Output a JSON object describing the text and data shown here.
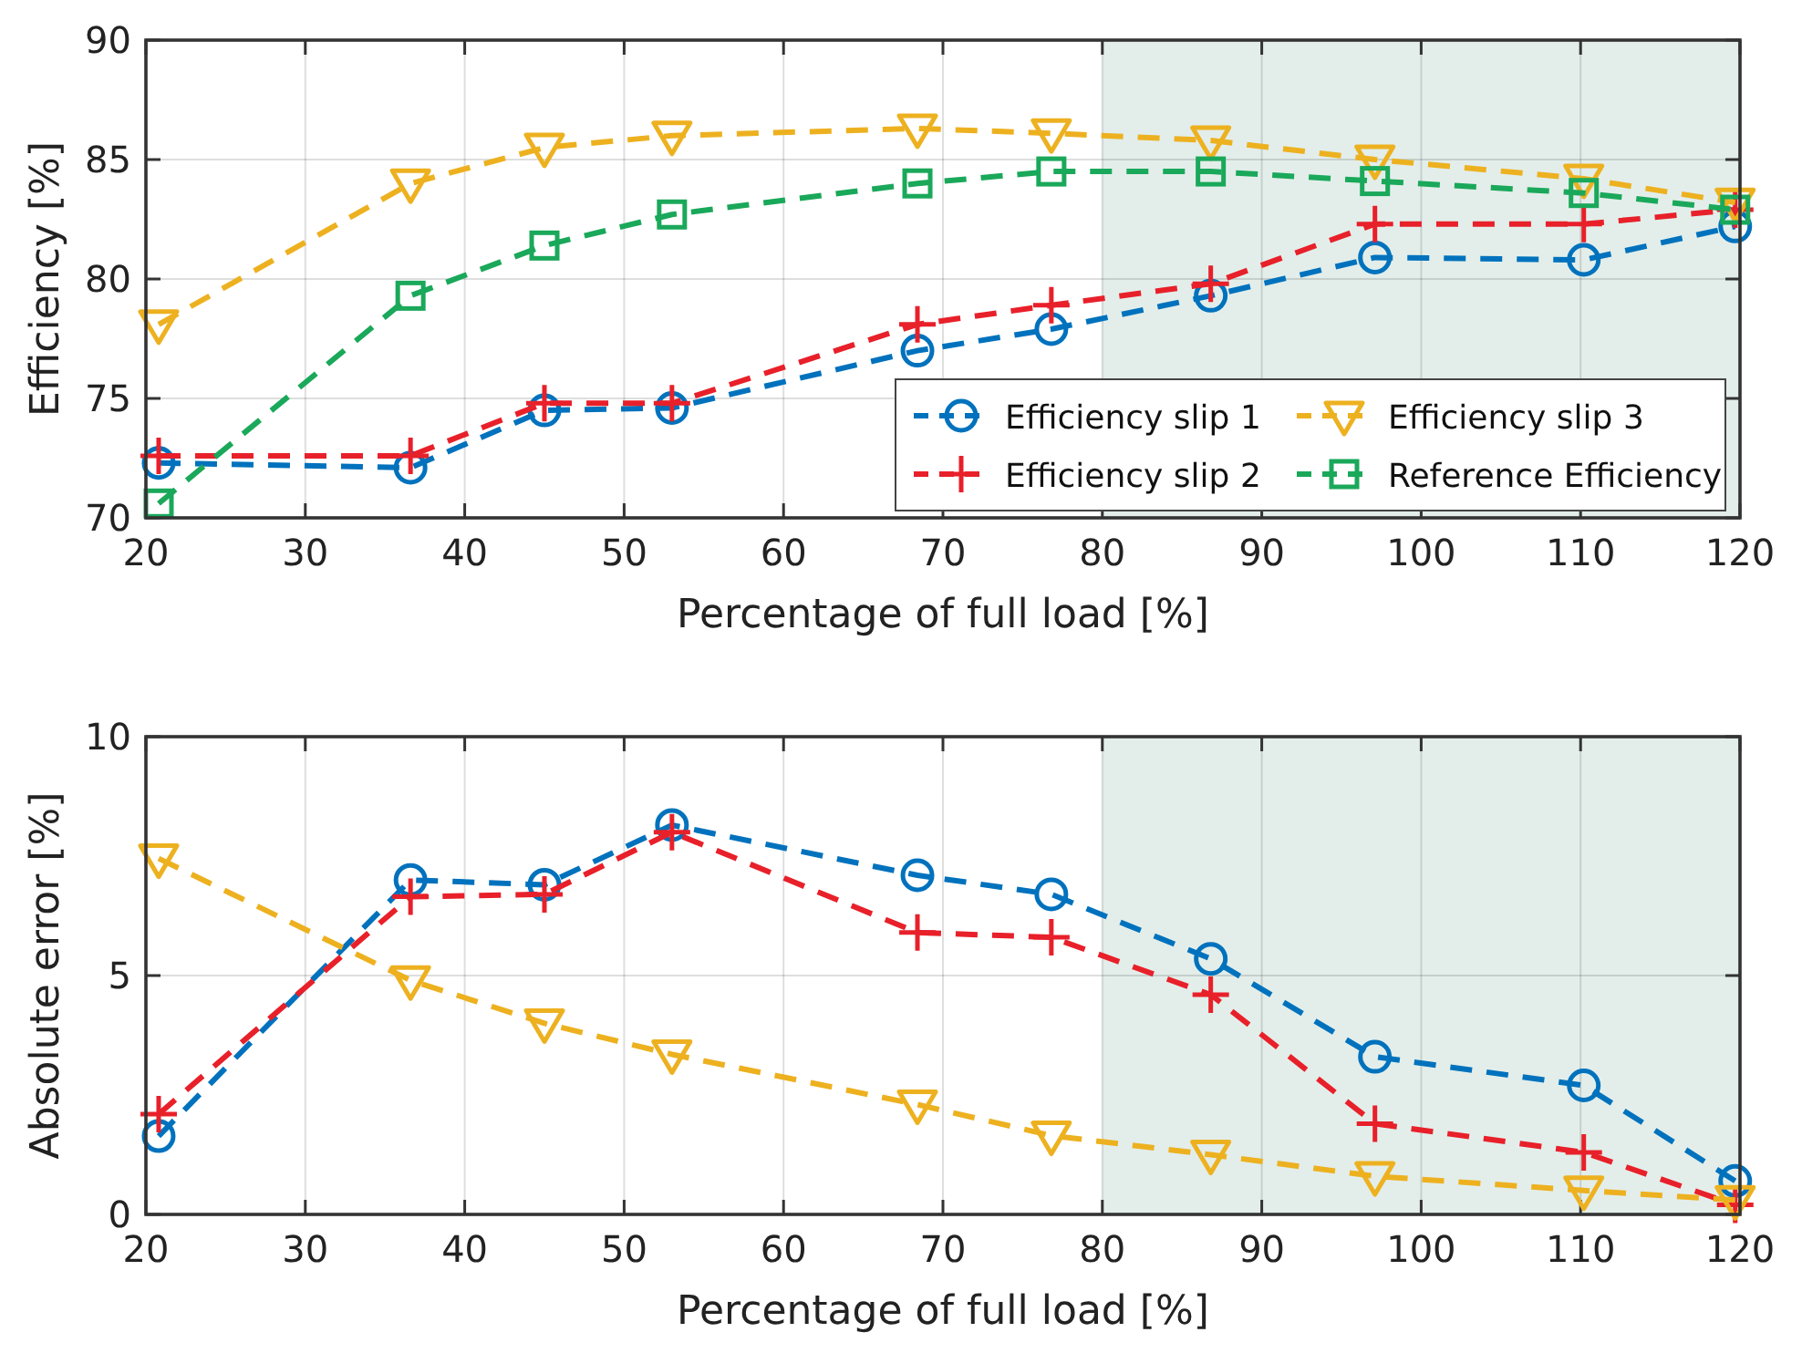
{
  "chart_data": [
    {
      "type": "line",
      "xlabel": "Percentage of full load [%]",
      "ylabel": "Efficiency [%]",
      "xlim": [
        20,
        120
      ],
      "xticks": [
        20,
        30,
        40,
        50,
        60,
        70,
        80,
        90,
        100,
        110,
        120
      ],
      "ylim": [
        70,
        90
      ],
      "yticks": [
        70,
        75,
        80,
        85,
        90
      ],
      "grid": true,
      "legend": "bottom right",
      "line_style": "dashed",
      "x": [
        20.8,
        36.6,
        45,
        53,
        68.4,
        76.8,
        86.8,
        97.1,
        110.2,
        119.7
      ],
      "bands": [
        {
          "axis": "x",
          "from": 80,
          "to": 120,
          "color": "#e3eeea"
        }
      ],
      "series": [
        {
          "name": "Efficiency slip 1",
          "color": "#0072bd",
          "marker": "circle",
          "values": [
            72.3,
            72.1,
            74.5,
            74.6,
            77.0,
            77.9,
            79.3,
            80.9,
            80.8,
            82.2
          ]
        },
        {
          "name": "Efficiency slip 2",
          "color": "#e8202a",
          "marker": "cross",
          "values": [
            72.6,
            72.6,
            74.8,
            74.8,
            78.1,
            78.9,
            79.8,
            82.3,
            82.3,
            82.9
          ]
        },
        {
          "name": "Efficiency slip 3",
          "color": "#edb120",
          "marker": "triangle",
          "values": [
            78.1,
            84.0,
            85.5,
            86.0,
            86.3,
            86.1,
            85.8,
            85.0,
            84.2,
            83.2
          ]
        },
        {
          "name": "Reference Efficiency",
          "color": "#1aa85a",
          "marker": "square",
          "values": [
            70.6,
            79.3,
            81.4,
            82.7,
            84.0,
            84.5,
            84.5,
            84.1,
            83.6,
            82.9
          ]
        }
      ]
    },
    {
      "type": "line",
      "xlabel": "Percentage of full load [%]",
      "ylabel": "Absolute error [%]",
      "xlim": [
        20,
        120
      ],
      "xticks": [
        20,
        30,
        40,
        50,
        60,
        70,
        80,
        90,
        100,
        110,
        120
      ],
      "ylim": [
        0,
        10
      ],
      "yticks": [
        0,
        5,
        10
      ],
      "grid": true,
      "line_style": "dashed",
      "x": [
        20.8,
        36.6,
        45,
        53,
        68.4,
        76.8,
        86.8,
        97.1,
        110.2,
        119.7
      ],
      "bands": [
        {
          "axis": "x",
          "from": 80,
          "to": 120,
          "color": "#e3eeea"
        }
      ],
      "series": [
        {
          "color": "#0072bd",
          "marker": "circle",
          "values": [
            1.64,
            7.0,
            6.9,
            8.15,
            7.1,
            6.7,
            5.35,
            3.3,
            2.7,
            0.7
          ]
        },
        {
          "color": "#e8202a",
          "marker": "cross",
          "values": [
            2.1,
            6.65,
            6.7,
            8.0,
            5.9,
            5.8,
            4.6,
            1.9,
            1.3,
            0.2
          ]
        },
        {
          "color": "#edb120",
          "marker": "triangle",
          "values": [
            7.45,
            4.9,
            4.0,
            3.35,
            2.3,
            1.65,
            1.25,
            0.8,
            0.5,
            0.3
          ]
        }
      ]
    }
  ]
}
